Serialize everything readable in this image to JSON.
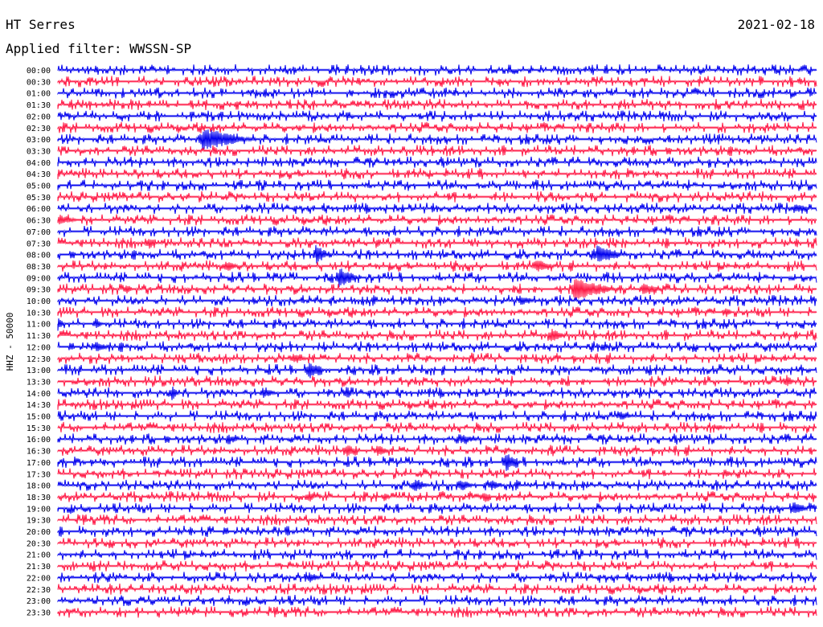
{
  "header": {
    "station": "HT Serres",
    "date": "2021-02-18",
    "filter_label": "Applied filter: WWSSN-SP"
  },
  "chart_data": {
    "type": "line",
    "ylabel": "HHZ - 50000",
    "colors": {
      "even_row": "#0000ee",
      "odd_row": "#ff1744",
      "text": "#000000",
      "background": "#ffffff"
    },
    "rows": [
      {
        "label": "00:00",
        "color": "blue",
        "events": []
      },
      {
        "label": "00:30",
        "color": "red",
        "events": []
      },
      {
        "label": "01:00",
        "color": "blue",
        "events": []
      },
      {
        "label": "01:30",
        "color": "red",
        "events": []
      },
      {
        "label": "02:00",
        "color": "blue",
        "events": []
      },
      {
        "label": "02:30",
        "color": "red",
        "events": []
      },
      {
        "label": "03:00",
        "color": "blue",
        "events": [
          {
            "t": 0.19,
            "amp": 14,
            "len": 0.07
          }
        ]
      },
      {
        "label": "03:30",
        "color": "red",
        "events": []
      },
      {
        "label": "04:00",
        "color": "blue",
        "events": []
      },
      {
        "label": "04:30",
        "color": "red",
        "events": []
      },
      {
        "label": "05:00",
        "color": "blue",
        "events": []
      },
      {
        "label": "05:30",
        "color": "red",
        "events": []
      },
      {
        "label": "06:00",
        "color": "blue",
        "events": [
          {
            "t": 0.97,
            "amp": 6,
            "len": 0.03
          }
        ]
      },
      {
        "label": "06:30",
        "color": "red",
        "events": [
          {
            "t": 0.0,
            "amp": 6,
            "len": 0.03
          }
        ]
      },
      {
        "label": "07:00",
        "color": "blue",
        "events": []
      },
      {
        "label": "07:30",
        "color": "red",
        "events": [
          {
            "t": 0.12,
            "amp": 8,
            "len": 0.01
          }
        ]
      },
      {
        "label": "08:00",
        "color": "blue",
        "events": [
          {
            "t": 0.34,
            "amp": 12,
            "len": 0.02
          },
          {
            "t": 0.71,
            "amp": 12,
            "len": 0.04
          }
        ]
      },
      {
        "label": "08:30",
        "color": "red",
        "events": [
          {
            "t": 0.22,
            "amp": 7,
            "len": 0.02
          },
          {
            "t": 0.63,
            "amp": 8,
            "len": 0.03
          }
        ]
      },
      {
        "label": "09:00",
        "color": "blue",
        "events": [
          {
            "t": 0.37,
            "amp": 13,
            "len": 0.03
          }
        ]
      },
      {
        "label": "09:30",
        "color": "red",
        "events": [
          {
            "t": 0.09,
            "amp": 7,
            "len": 0.01
          },
          {
            "t": 0.68,
            "amp": 14,
            "len": 0.06
          },
          {
            "t": 0.77,
            "amp": 8,
            "len": 0.03
          }
        ]
      },
      {
        "label": "10:00",
        "color": "blue",
        "events": [
          {
            "t": 0.61,
            "amp": 6,
            "len": 0.02
          }
        ]
      },
      {
        "label": "10:30",
        "color": "red",
        "events": [
          {
            "t": 0.88,
            "amp": 7,
            "len": 0.01
          }
        ]
      },
      {
        "label": "11:00",
        "color": "blue",
        "events": [
          {
            "t": 0.0,
            "amp": 9,
            "len": 0.01
          },
          {
            "t": 0.05,
            "amp": 7,
            "len": 0.01
          }
        ]
      },
      {
        "label": "11:30",
        "color": "red",
        "events": [
          {
            "t": 0.65,
            "amp": 9,
            "len": 0.02
          }
        ]
      },
      {
        "label": "12:00",
        "color": "blue",
        "events": [
          {
            "t": 0.05,
            "amp": 7,
            "len": 0.02
          },
          {
            "t": 0.72,
            "amp": 6,
            "len": 0.01
          }
        ]
      },
      {
        "label": "12:30",
        "color": "red",
        "events": [
          {
            "t": 0.31,
            "amp": 7,
            "len": 0.02
          }
        ]
      },
      {
        "label": "13:00",
        "color": "blue",
        "events": [
          {
            "t": 0.33,
            "amp": 12,
            "len": 0.02
          }
        ]
      },
      {
        "label": "13:30",
        "color": "red",
        "events": [
          {
            "t": 0.96,
            "amp": 10,
            "len": 0.01
          }
        ]
      },
      {
        "label": "14:00",
        "color": "blue",
        "events": [
          {
            "t": 0.15,
            "amp": 10,
            "len": 0.01
          },
          {
            "t": 0.27,
            "amp": 7,
            "len": 0.02
          },
          {
            "t": 0.38,
            "amp": 9,
            "len": 0.01
          }
        ]
      },
      {
        "label": "14:30",
        "color": "red",
        "events": []
      },
      {
        "label": "15:00",
        "color": "blue",
        "events": [
          {
            "t": 0.74,
            "amp": 6,
            "len": 0.02
          }
        ]
      },
      {
        "label": "15:30",
        "color": "red",
        "events": [
          {
            "t": 0.87,
            "amp": 5,
            "len": 0.01
          }
        ]
      },
      {
        "label": "16:00",
        "color": "blue",
        "events": [
          {
            "t": 0.23,
            "amp": 6,
            "len": 0.01
          },
          {
            "t": 0.53,
            "amp": 6,
            "len": 0.03
          }
        ]
      },
      {
        "label": "16:30",
        "color": "red",
        "events": [
          {
            "t": 0.38,
            "amp": 8,
            "len": 0.02
          },
          {
            "t": 0.42,
            "amp": 8,
            "len": 0.02
          }
        ]
      },
      {
        "label": "17:00",
        "color": "blue",
        "events": [
          {
            "t": 0.59,
            "amp": 13,
            "len": 0.02
          }
        ]
      },
      {
        "label": "17:30",
        "color": "red",
        "events": [
          {
            "t": 0.88,
            "amp": 6,
            "len": 0.01
          }
        ]
      },
      {
        "label": "18:00",
        "color": "blue",
        "events": [
          {
            "t": 0.47,
            "amp": 9,
            "len": 0.02
          },
          {
            "t": 0.53,
            "amp": 8,
            "len": 0.02
          },
          {
            "t": 0.57,
            "amp": 7,
            "len": 0.02
          }
        ]
      },
      {
        "label": "18:30",
        "color": "red",
        "events": [
          {
            "t": 0.33,
            "amp": 8,
            "len": 0.01
          },
          {
            "t": 0.43,
            "amp": 6,
            "len": 0.01
          },
          {
            "t": 0.56,
            "amp": 7,
            "len": 0.01
          }
        ]
      },
      {
        "label": "19:00",
        "color": "blue",
        "events": [
          {
            "t": 0.97,
            "amp": 8,
            "len": 0.02
          }
        ]
      },
      {
        "label": "19:30",
        "color": "red",
        "events": []
      },
      {
        "label": "20:00",
        "color": "blue",
        "events": []
      },
      {
        "label": "20:30",
        "color": "red",
        "events": []
      },
      {
        "label": "21:00",
        "color": "blue",
        "events": []
      },
      {
        "label": "21:30",
        "color": "red",
        "events": []
      },
      {
        "label": "22:00",
        "color": "blue",
        "events": [
          {
            "t": 0.33,
            "amp": 7,
            "len": 0.02
          }
        ]
      },
      {
        "label": "22:30",
        "color": "red",
        "events": []
      },
      {
        "label": "23:00",
        "color": "blue",
        "events": []
      },
      {
        "label": "23:30",
        "color": "red",
        "events": []
      }
    ]
  }
}
